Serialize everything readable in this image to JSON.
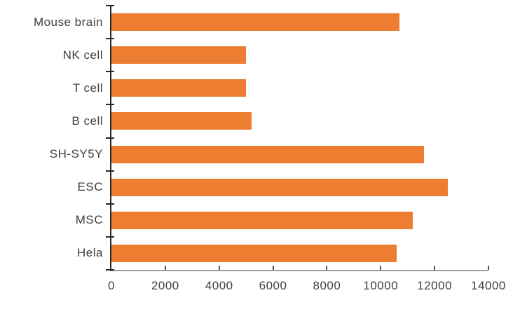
{
  "chart_data": {
    "type": "bar",
    "orientation": "horizontal",
    "title": "",
    "xlabel": "",
    "ylabel": "",
    "categories": [
      "Mouse brain",
      "NK cell",
      "T cell",
      "B cell",
      "SH-SY5Y",
      "ESC",
      "MSC",
      "Hela"
    ],
    "values": [
      10700,
      5000,
      5000,
      5200,
      11600,
      12500,
      11200,
      10600
    ],
    "xlim": [
      0,
      14000
    ],
    "x_ticks": [
      0,
      2000,
      4000,
      6000,
      8000,
      10000,
      12000,
      14000
    ],
    "x_tick_labels": [
      "0",
      "2000",
      "4000",
      "6000",
      "8000",
      "10000",
      "12000",
      "14000"
    ],
    "grid": false,
    "legend": false,
    "colors": {
      "bar": "#ED7D31",
      "category_axis_line": "#262626",
      "value_axis_line": "#9C9C9C",
      "tick": "#595959",
      "text": "#3F3F3F",
      "background": "#FFFFFF"
    }
  }
}
